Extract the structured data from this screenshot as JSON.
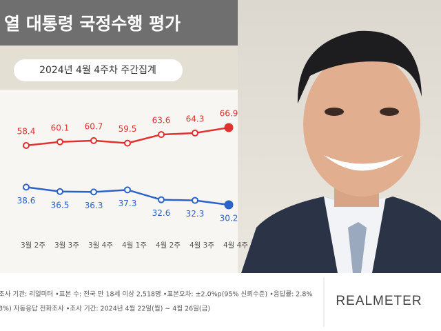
{
  "chart_data": {
    "type": "line",
    "title": "열 대통령 국정수행 평가",
    "subtitle": "2024년 4월 4주차 주간집계",
    "categories": [
      "3월 2주",
      "3월 3주",
      "3월 4주",
      "4월 1주",
      "4월 2주",
      "4월 3주",
      "4월 4주"
    ],
    "series": [
      {
        "color": "#e0312f",
        "values": [
          58.4,
          60.1,
          60.7,
          59.5,
          63.6,
          64.3,
          66.9
        ]
      },
      {
        "color": "#2a62c9",
        "values": [
          38.6,
          36.5,
          36.3,
          37.3,
          32.6,
          32.3,
          30.2
        ]
      }
    ],
    "footnotes": [
      "조사 기관: 리얼미터 •표본 수: 전국 만 18세 이상 2,518명 •표본오차: ±2.0%p(95% 신뢰수준) •응답률: 2.8%",
      "3%) 자동응답 전화조사 •조사 기간: 2024년 4월 22일(월) ~ 4월 26일(금)"
    ],
    "logo": "REALMETER"
  }
}
